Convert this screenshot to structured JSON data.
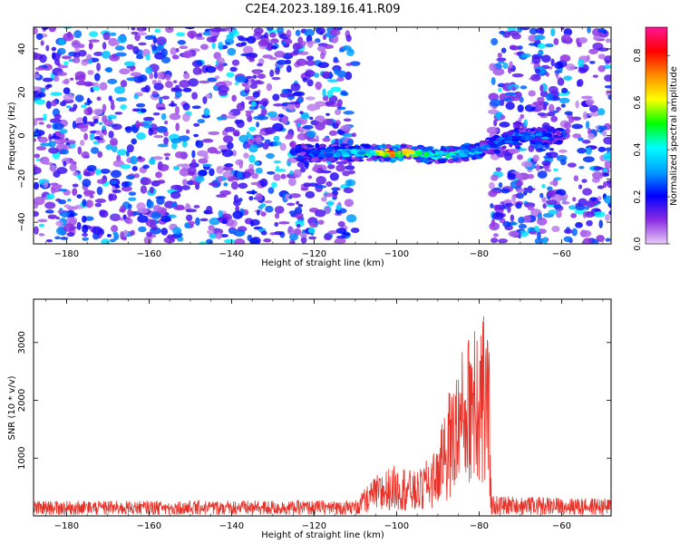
{
  "figure": {
    "title": "C2E4.2023.189.16.41.R09"
  },
  "chart_data": [
    {
      "type": "heatmap",
      "title": "C2E4.2023.189.16.41.R09",
      "xlabel": "Height of straight line (km)",
      "ylabel": "Frequency (Hz)",
      "xlim": [
        -188,
        -48
      ],
      "ylim": [
        -50,
        50
      ],
      "x_ticks": [
        -180,
        -160,
        -140,
        -120,
        -100,
        -80,
        -60
      ],
      "y_ticks": [
        -40,
        -20,
        0,
        20,
        40
      ],
      "grid": false,
      "background_noise_regions": [
        {
          "x": [
            -188,
            -110
          ],
          "y": [
            -50,
            50
          ],
          "amplitude": 0.25
        },
        {
          "x": [
            -77,
            -48
          ],
          "y": [
            -50,
            50
          ],
          "amplitude": 0.25
        }
      ],
      "empty_region": {
        "x": [
          -110,
          -77
        ]
      },
      "signal_band": {
        "points": [
          {
            "x": -124,
            "y": -8,
            "amplitude": 0.2
          },
          {
            "x": -120,
            "y": -8,
            "amplitude": 0.3
          },
          {
            "x": -116,
            "y": -8,
            "amplitude": 0.35
          },
          {
            "x": -112,
            "y": -8,
            "amplitude": 0.4
          },
          {
            "x": -108,
            "y": -8,
            "amplitude": 0.5
          },
          {
            "x": -104,
            "y": -8,
            "amplitude": 0.7
          },
          {
            "x": -100,
            "y": -8,
            "amplitude": 0.85
          },
          {
            "x": -96,
            "y": -8,
            "amplitude": 0.6
          },
          {
            "x": -92,
            "y": -9,
            "amplitude": 0.5
          },
          {
            "x": -88,
            "y": -9,
            "amplitude": 0.55
          },
          {
            "x": -84,
            "y": -8,
            "amplitude": 0.45
          },
          {
            "x": -80,
            "y": -7,
            "amplitude": 0.4
          },
          {
            "x": -77,
            "y": -5,
            "amplitude": 0.3
          },
          {
            "x": -72,
            "y": -1,
            "amplitude": 0.3
          },
          {
            "x": -68,
            "y": 0,
            "amplitude": 0.3
          },
          {
            "x": -64,
            "y": 0,
            "amplitude": 0.35
          },
          {
            "x": -60,
            "y": 0,
            "amplitude": 0.2
          }
        ]
      },
      "colorbar": {
        "label": "Normalized spectral amplitude",
        "range": [
          0,
          0.92
        ],
        "ticks": [
          "0.0",
          "0.2",
          "0.4",
          "0.6",
          "0.8"
        ],
        "colors": [
          "#e8ccf8",
          "#8a2be2",
          "#0000ff",
          "#00a0ff",
          "#00ffff",
          "#00ff00",
          "#ffff00",
          "#ff8c00",
          "#ff0000",
          "#ff1493"
        ]
      }
    },
    {
      "type": "line",
      "xlabel": "Height of straight line (km)",
      "ylabel": "SNR (10 * v/v)",
      "xlim": [
        -188,
        -48
      ],
      "ylim": [
        0,
        3750
      ],
      "x_ticks": [
        -180,
        -160,
        -140,
        -120,
        -100,
        -80,
        -60
      ],
      "y_ticks": [
        1000,
        2000,
        3000
      ],
      "grid": false,
      "color": "#e8332a",
      "envelope": [
        {
          "x": -188,
          "low": 20,
          "high": 260
        },
        {
          "x": -110,
          "low": 20,
          "high": 270
        },
        {
          "x": -105,
          "low": 60,
          "high": 700
        },
        {
          "x": -100,
          "low": 100,
          "high": 900
        },
        {
          "x": -95,
          "low": 80,
          "high": 750
        },
        {
          "x": -90,
          "low": 150,
          "high": 1250
        },
        {
          "x": -87,
          "low": 300,
          "high": 2300
        },
        {
          "x": -84,
          "low": 500,
          "high": 2900
        },
        {
          "x": -82,
          "low": 600,
          "high": 3300
        },
        {
          "x": -81,
          "low": 600,
          "high": 3750
        },
        {
          "x": -79,
          "low": 500,
          "high": 3700
        },
        {
          "x": -77.5,
          "low": 300,
          "high": 2800
        },
        {
          "x": -77,
          "low": 20,
          "high": 350
        },
        {
          "x": -48,
          "low": 20,
          "high": 300
        }
      ]
    }
  ]
}
